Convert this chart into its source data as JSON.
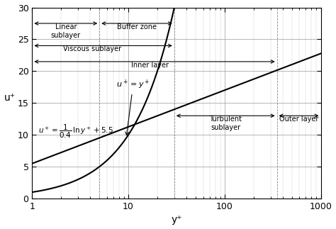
{
  "xlabel": "y⁺",
  "ylabel": "u⁺",
  "xlim": [
    1,
    1000
  ],
  "ylim": [
    0,
    30
  ],
  "yticks": [
    0,
    5,
    10,
    15,
    20,
    25,
    30
  ],
  "xticks": [
    1,
    10,
    100,
    1000
  ],
  "xtick_labels": [
    "1",
    "10",
    "100",
    "1000"
  ],
  "background_color": "#ffffff",
  "line_color": "#000000",
  "grid_major_color": "#999999",
  "grid_minor_color": "#cccccc",
  "boundary_lines": [
    5,
    30,
    350
  ],
  "boundary_line_color": "#888888",
  "kappa": 0.4,
  "B": 5.5,
  "annotations": {
    "linear_sublayer_x1": 1,
    "linear_sublayer_x2": 5,
    "linear_sublayer_y": 27.5,
    "linear_sublayer_text": "Linear\nsublayer",
    "buffer_zone_x1": 5,
    "buffer_zone_x2": 30,
    "buffer_zone_y": 27.5,
    "buffer_zone_text": "Buffer zone",
    "viscous_sublayer_x1": 1,
    "viscous_sublayer_x2": 30,
    "viscous_sublayer_y": 24.0,
    "viscous_sublayer_text": "Viscous sublayer",
    "inner_layer_x1": 1,
    "inner_layer_x2": 350,
    "inner_layer_y": 21.5,
    "inner_layer_text": "Inner layer",
    "turbulent_sublayer_x1": 30,
    "turbulent_sublayer_x2": 350,
    "turbulent_sublayer_y": 13.0,
    "turbulent_sublayer_text": "Turbulent\nsublayer",
    "outer_layer_x1": 350,
    "outer_layer_x2": 1000,
    "outer_layer_y": 13.0,
    "outer_layer_text": "Outer layer",
    "eq1_text": "$u^+ = y^+$",
    "eq1_x": 7.5,
    "eq1_y": 17.5,
    "eq2_x": 1.15,
    "eq2_y": 10.5
  }
}
